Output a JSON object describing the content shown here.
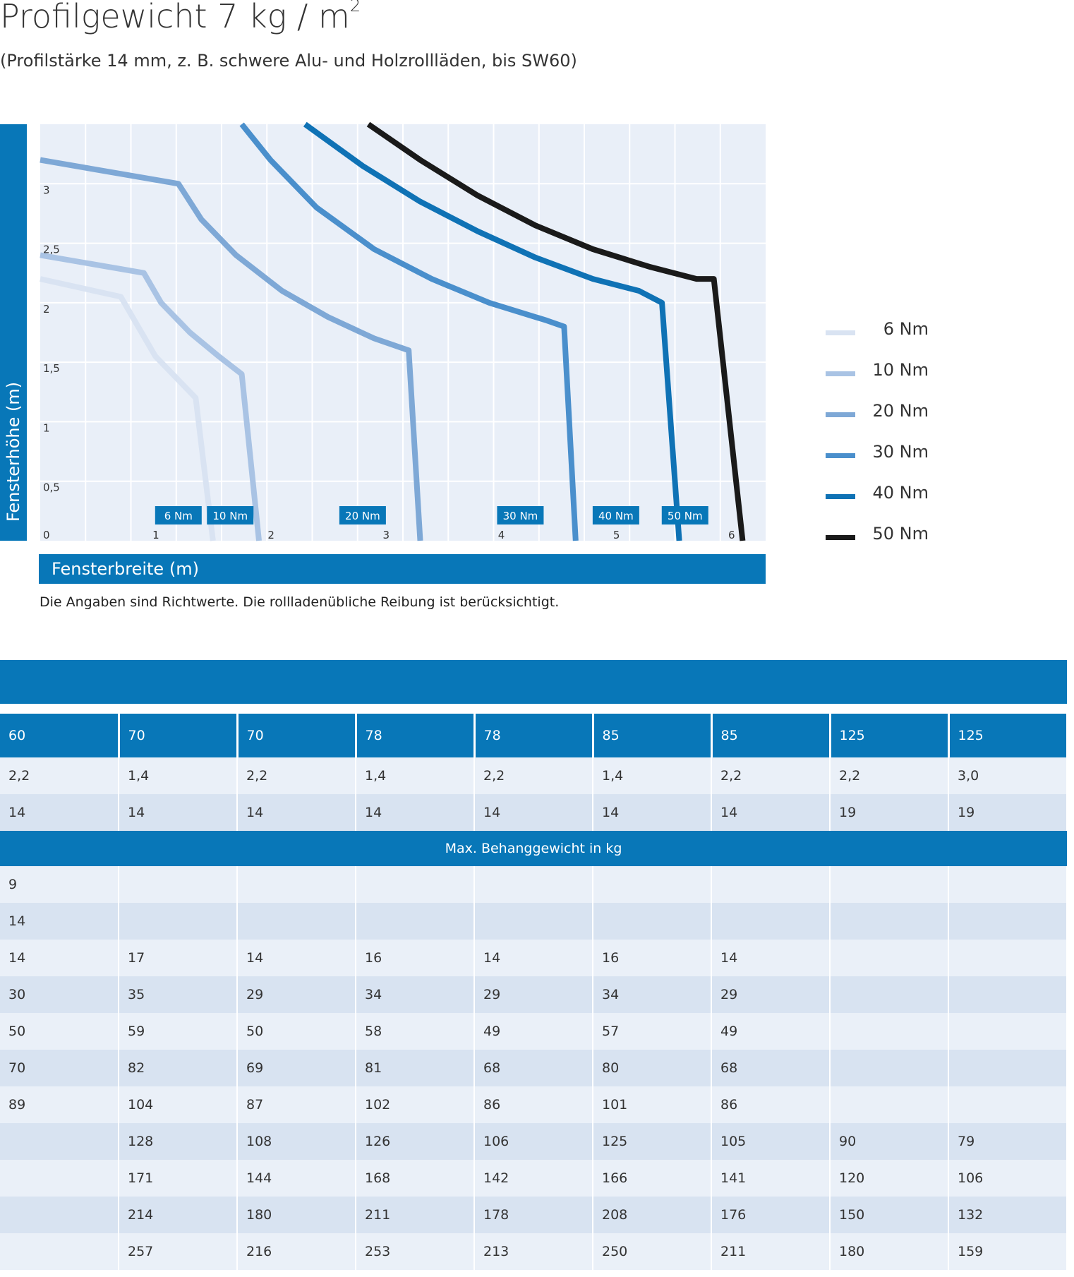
{
  "title": "Profilgewicht 7 kg / m",
  "title_sup": "2",
  "subtitle": "(Profilstärke 14 mm, z. B. schwere Alu- und Holzrollläden, bis SW60)",
  "note": "Die Angaben sind Richtwerte. Die rollladenübliche Reibung ist berücksichtigt.",
  "chart_data": {
    "type": "line",
    "xlabel": "Fensterbreite (m)",
    "ylabel": "Fensterhöhe (m)",
    "xlim": [
      0,
      6.3
    ],
    "ylim": [
      0,
      3.5
    ],
    "x_ticks": [
      "0",
      "1",
      "2",
      "3",
      "4",
      "5",
      "6"
    ],
    "y_ticks": [
      "3",
      "2,5",
      "2",
      "1,5",
      "1",
      "0,5"
    ],
    "grid": true,
    "legend_position": "right",
    "series": [
      {
        "name": "6 Nm",
        "color": "#d9e3f2",
        "points": [
          [
            0,
            2.2
          ],
          [
            0.7,
            2.05
          ],
          [
            0.85,
            1.8
          ],
          [
            1.0,
            1.55
          ],
          [
            1.2,
            1.35
          ],
          [
            1.35,
            1.2
          ],
          [
            1.5,
            0
          ]
        ]
      },
      {
        "name": "10 Nm",
        "color": "#a9c3e4",
        "points": [
          [
            0,
            2.4
          ],
          [
            0.9,
            2.25
          ],
          [
            1.05,
            2.0
          ],
          [
            1.3,
            1.75
          ],
          [
            1.55,
            1.55
          ],
          [
            1.75,
            1.4
          ],
          [
            1.9,
            0
          ]
        ]
      },
      {
        "name": "20 Nm",
        "color": "#7ea8d6",
        "points": [
          [
            0,
            3.2
          ],
          [
            1.2,
            3.0
          ],
          [
            1.4,
            2.7
          ],
          [
            1.7,
            2.4
          ],
          [
            2.1,
            2.1
          ],
          [
            2.5,
            1.88
          ],
          [
            2.9,
            1.7
          ],
          [
            3.2,
            1.6
          ],
          [
            3.3,
            0
          ]
        ]
      },
      {
        "name": "30 Nm",
        "color": "#4a8fcc",
        "points": [
          [
            1.75,
            3.5
          ],
          [
            2.0,
            3.2
          ],
          [
            2.4,
            2.8
          ],
          [
            2.9,
            2.45
          ],
          [
            3.4,
            2.2
          ],
          [
            3.9,
            2.0
          ],
          [
            4.4,
            1.85
          ],
          [
            4.55,
            1.8
          ],
          [
            4.65,
            0
          ]
        ]
      },
      {
        "name": "40 Nm",
        "color": "#0f72b5",
        "points": [
          [
            2.3,
            3.5
          ],
          [
            2.8,
            3.15
          ],
          [
            3.3,
            2.85
          ],
          [
            3.8,
            2.6
          ],
          [
            4.3,
            2.38
          ],
          [
            4.8,
            2.2
          ],
          [
            5.2,
            2.1
          ],
          [
            5.4,
            2.0
          ],
          [
            5.55,
            0
          ]
        ]
      },
      {
        "name": "50 Nm",
        "color": "#1a1a1a",
        "points": [
          [
            2.85,
            3.5
          ],
          [
            3.3,
            3.2
          ],
          [
            3.8,
            2.9
          ],
          [
            4.3,
            2.65
          ],
          [
            4.8,
            2.45
          ],
          [
            5.3,
            2.3
          ],
          [
            5.7,
            2.2
          ],
          [
            5.85,
            2.2
          ],
          [
            6.1,
            0
          ]
        ]
      }
    ],
    "annotations": [
      {
        "text": "6 Nm",
        "x": 1.2
      },
      {
        "text": "10 Nm",
        "x": 1.65
      },
      {
        "text": "20 Nm",
        "x": 2.8
      },
      {
        "text": "30 Nm",
        "x": 4.17
      },
      {
        "text": "40 Nm",
        "x": 5.0
      },
      {
        "text": "50 Nm",
        "x": 5.6
      }
    ]
  },
  "table": {
    "header": [
      "60",
      "70",
      "70",
      "78",
      "78",
      "85",
      "85",
      "125",
      "125"
    ],
    "rows_top": [
      [
        "2,2",
        "1,4",
        "2,2",
        "1,4",
        "2,2",
        "1,4",
        "2,2",
        "2,2",
        "3,0"
      ],
      [
        "14",
        "14",
        "14",
        "14",
        "14",
        "14",
        "14",
        "19",
        "19"
      ]
    ],
    "separator": "Max. Behanggewicht in kg",
    "rows": [
      [
        "9",
        "",
        "",
        "",
        "",
        "",
        "",
        "",
        ""
      ],
      [
        "14",
        "",
        "",
        "",
        "",
        "",
        "",
        "",
        ""
      ],
      [
        "14",
        "17",
        "14",
        "16",
        "14",
        "16",
        "14",
        "",
        ""
      ],
      [
        "30",
        "35",
        "29",
        "34",
        "29",
        "34",
        "29",
        "",
        ""
      ],
      [
        "50",
        "59",
        "50",
        "58",
        "49",
        "57",
        "49",
        "",
        ""
      ],
      [
        "70",
        "82",
        "69",
        "81",
        "68",
        "80",
        "68",
        "",
        ""
      ],
      [
        "89",
        "104",
        "87",
        "102",
        "86",
        "101",
        "86",
        "",
        ""
      ],
      [
        "",
        "128",
        "108",
        "126",
        "106",
        "125",
        "105",
        "90",
        "79"
      ],
      [
        "",
        "171",
        "144",
        "168",
        "142",
        "166",
        "141",
        "120",
        "106"
      ],
      [
        "",
        "214",
        "180",
        "211",
        "178",
        "208",
        "176",
        "150",
        "132"
      ],
      [
        "",
        "257",
        "216",
        "253",
        "213",
        "250",
        "211",
        "180",
        "159"
      ]
    ]
  }
}
